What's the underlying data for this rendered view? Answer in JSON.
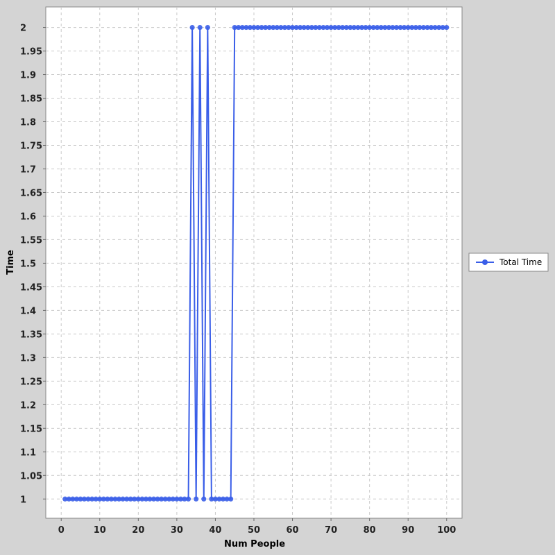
{
  "chart_data": {
    "type": "line",
    "title": "",
    "xlabel": "Num People",
    "ylabel": "Time",
    "xlim": [
      -4,
      104
    ],
    "ylim": [
      0.9592,
      2.0435
    ],
    "x_ticks": [
      0,
      10,
      20,
      30,
      40,
      50,
      60,
      70,
      80,
      90,
      100
    ],
    "y_ticks": [
      1,
      1.05,
      1.1,
      1.15,
      1.2,
      1.25,
      1.3,
      1.35,
      1.4,
      1.45,
      1.5,
      1.55,
      1.6,
      1.65,
      1.7,
      1.75,
      1.8,
      1.85,
      1.9,
      1.95,
      2
    ],
    "grid": true,
    "legend_position": "right",
    "colors": {
      "series": "#3a5ee8",
      "plot_bg": "#ffffff",
      "grid": "#c8c8c8",
      "page_bg": "#d4d4d4"
    },
    "series": [
      {
        "name": "Total Time",
        "x": [
          1,
          2,
          3,
          4,
          5,
          6,
          7,
          8,
          9,
          10,
          11,
          12,
          13,
          14,
          15,
          16,
          17,
          18,
          19,
          20,
          21,
          22,
          23,
          24,
          25,
          26,
          27,
          28,
          29,
          30,
          31,
          32,
          33,
          34,
          35,
          36,
          37,
          38,
          39,
          40,
          41,
          42,
          43,
          44,
          45,
          46,
          47,
          48,
          49,
          50,
          51,
          52,
          53,
          54,
          55,
          56,
          57,
          58,
          59,
          60,
          61,
          62,
          63,
          64,
          65,
          66,
          67,
          68,
          69,
          70,
          71,
          72,
          73,
          74,
          75,
          76,
          77,
          78,
          79,
          80,
          81,
          82,
          83,
          84,
          85,
          86,
          87,
          88,
          89,
          90,
          91,
          92,
          93,
          94,
          95,
          96,
          97,
          98,
          99,
          100
        ],
        "values": [
          1,
          1,
          1,
          1,
          1,
          1,
          1,
          1,
          1,
          1,
          1,
          1,
          1,
          1,
          1,
          1,
          1,
          1,
          1,
          1,
          1,
          1,
          1,
          1,
          1,
          1,
          1,
          1,
          1,
          1,
          1,
          1,
          1,
          2,
          1,
          2,
          1,
          2,
          1,
          1,
          1,
          1,
          1,
          1,
          2,
          2,
          2,
          2,
          2,
          2,
          2,
          2,
          2,
          2,
          2,
          2,
          2,
          2,
          2,
          2,
          2,
          2,
          2,
          2,
          2,
          2,
          2,
          2,
          2,
          2,
          2,
          2,
          2,
          2,
          2,
          2,
          2,
          2,
          2,
          2,
          2,
          2,
          2,
          2,
          2,
          2,
          2,
          2,
          2,
          2,
          2,
          2,
          2,
          2,
          2,
          2,
          2,
          2,
          2,
          2
        ]
      }
    ]
  }
}
